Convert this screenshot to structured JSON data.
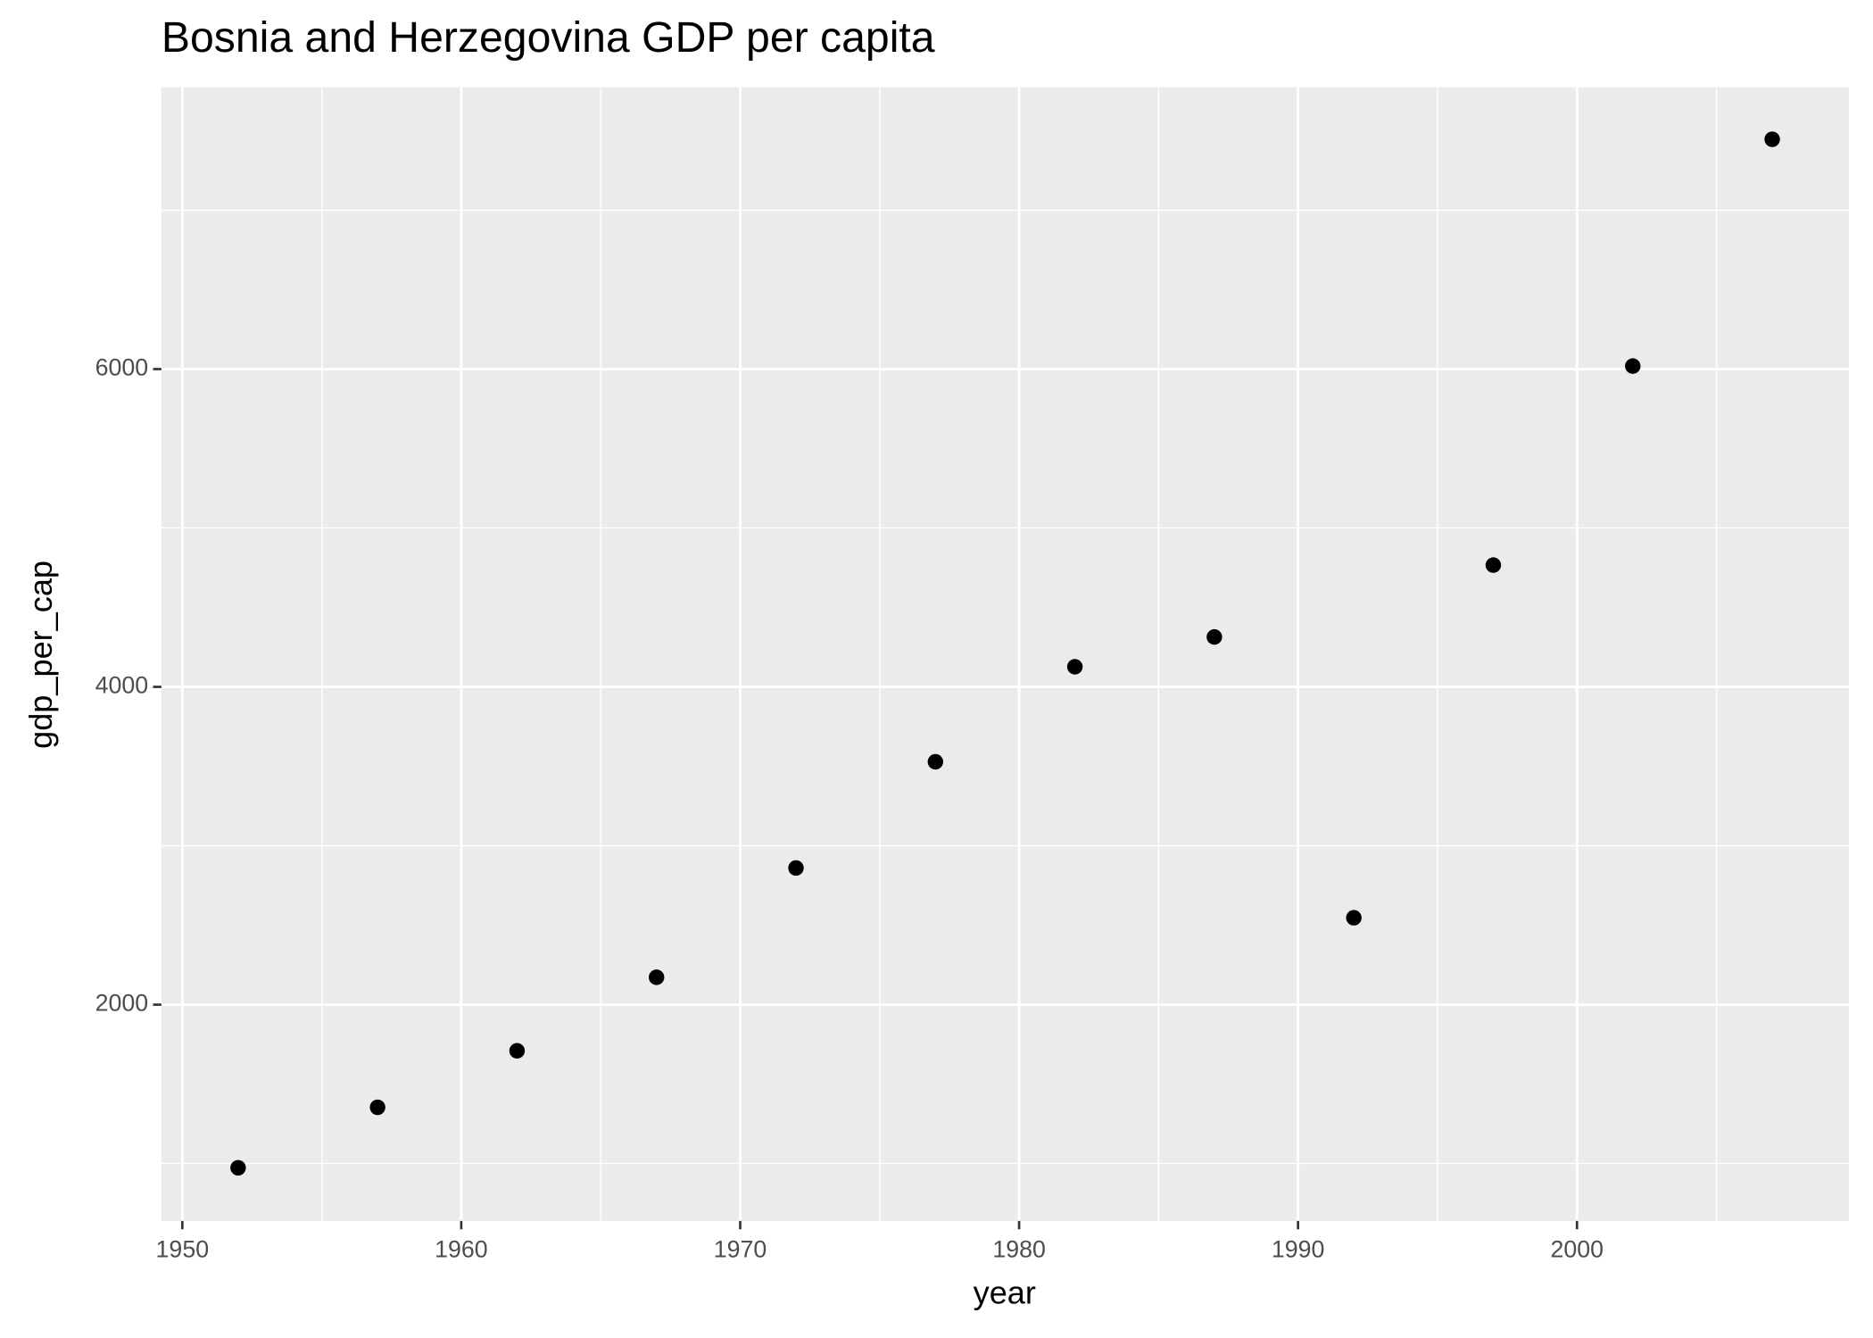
{
  "chart_data": {
    "type": "scatter",
    "title": "Bosnia and Herzegovina GDP per capita",
    "x_label": "year",
    "y_label": "gdp_per_cap",
    "x": [
      1952,
      1957,
      1962,
      1967,
      1972,
      1977,
      1982,
      1987,
      1992,
      1997,
      2002,
      2007
    ],
    "series": [
      {
        "name": "Bosnia and Herzegovina",
        "color": "#000000",
        "values": [
          973.53,
          1353.99,
          1709.68,
          2172.35,
          2860.17,
          3528.48,
          4126.61,
          4314.11,
          2546.78,
          4766.36,
          6018.98,
          7446.3
        ]
      }
    ],
    "xlim": [
      1949.25,
      2009.75
    ],
    "xticks": [
      1950,
      1960,
      1970,
      1980,
      1990,
      2000
    ],
    "x_minor_ticks": [
      1955,
      1965,
      1975,
      1985,
      1995,
      2005
    ],
    "ylim": [
      639,
      7774
    ],
    "yticks": [
      2000,
      4000,
      6000
    ],
    "y_minor_ticks": [
      1000,
      3000,
      5000,
      7000
    ],
    "grid": true
  }
}
